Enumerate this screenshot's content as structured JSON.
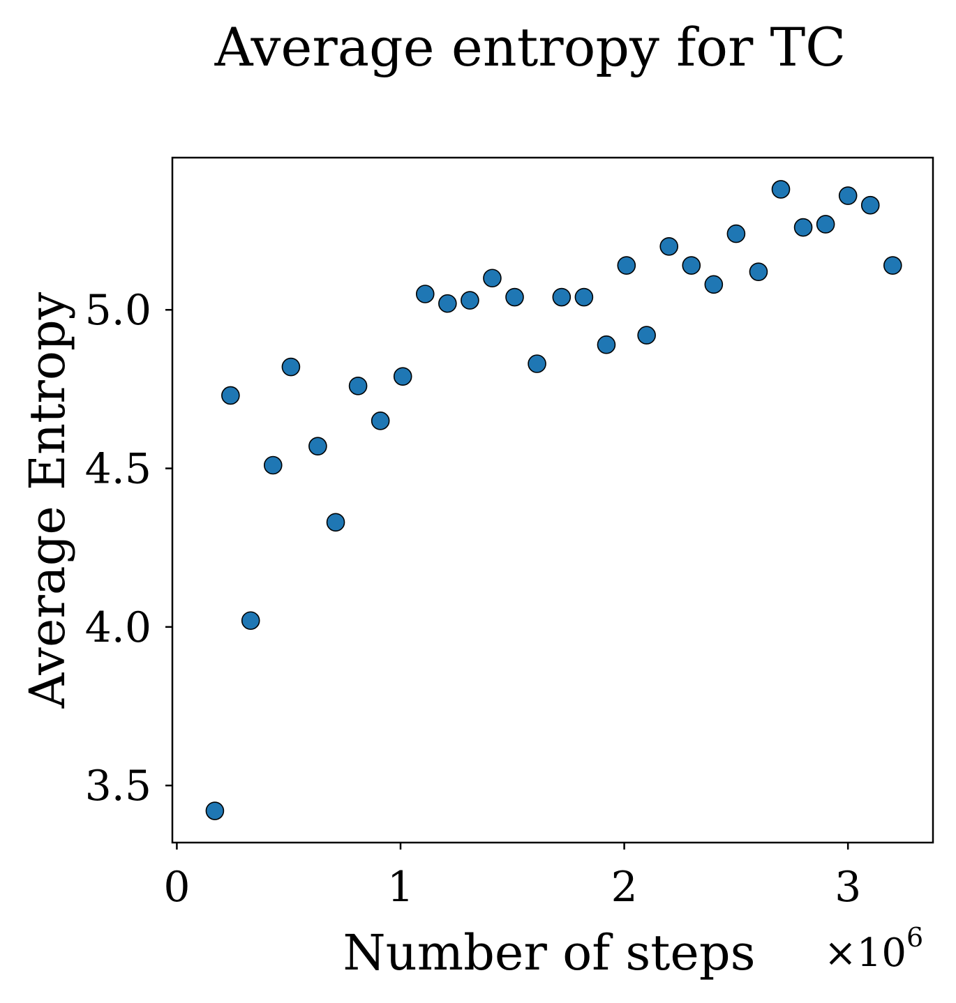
{
  "chart_data": {
    "type": "scatter",
    "title": "Average entropy for TC",
    "xlabel": "Number of steps",
    "ylabel": "Average Entropy",
    "x_multiplier_label": "×10",
    "x_multiplier_exponent": "6",
    "xlim": [
      -0.02,
      3.38
    ],
    "ylim": [
      3.32,
      5.48
    ],
    "xticks": [
      0,
      1,
      2,
      3
    ],
    "xtick_labels": [
      "0",
      "1",
      "2",
      "3"
    ],
    "yticks": [
      3.5,
      4.0,
      4.5,
      5.0
    ],
    "ytick_labels": [
      "3.5",
      "4.0",
      "4.5",
      "5.0"
    ],
    "grid": false,
    "marker_color": "#1f77b4",
    "marker_edge_color": "#000000",
    "series": [
      {
        "name": "Average entropy",
        "x": [
          0.17,
          0.24,
          0.33,
          0.43,
          0.51,
          0.63,
          0.71,
          0.81,
          0.91,
          1.01,
          1.11,
          1.21,
          1.31,
          1.41,
          1.51,
          1.61,
          1.72,
          1.82,
          1.92,
          2.01,
          2.1,
          2.2,
          2.3,
          2.4,
          2.5,
          2.6,
          2.7,
          2.8,
          2.9,
          3.0,
          3.1,
          3.2
        ],
        "y": [
          3.42,
          4.73,
          4.02,
          4.51,
          4.82,
          4.57,
          4.33,
          4.76,
          4.65,
          4.79,
          5.05,
          5.02,
          5.03,
          5.1,
          5.04,
          4.83,
          5.04,
          5.04,
          4.89,
          5.14,
          4.92,
          5.2,
          5.14,
          5.08,
          5.24,
          5.12,
          5.38,
          5.26,
          5.27,
          5.36,
          5.33,
          5.14
        ]
      }
    ]
  }
}
